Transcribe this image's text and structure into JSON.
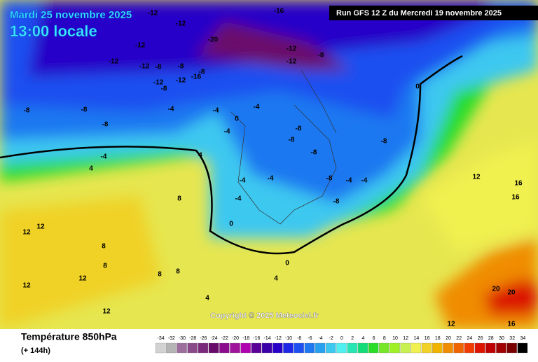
{
  "header": {
    "date": "Mardi 25 novembre 2025",
    "time": "13:00 locale",
    "run": "Run GFS 12 Z du Mercredi 19 novembre 2025"
  },
  "map": {
    "labels": [
      "-12",
      "-12",
      "-20",
      "-16",
      "-12",
      "-12",
      "-12",
      "-12",
      "-8",
      "-12",
      "-8",
      "-8",
      "-16",
      "-8",
      "-12",
      "-12",
      "-8",
      "-4",
      "-8",
      "-8",
      "-8",
      "-4",
      "-4",
      "-4",
      "-4",
      "-8",
      "-8",
      "-8",
      "-8",
      "-8",
      "0",
      "0",
      "0",
      "0",
      "-4",
      "-4",
      "-4",
      "-4",
      "-8",
      "-4",
      "4",
      "4",
      "4",
      "8",
      "8",
      "8",
      "8",
      "12",
      "12",
      "12",
      "12",
      "12",
      "12",
      "16",
      "16",
      "20",
      "20",
      "12",
      "16",
      "8",
      "4"
    ],
    "copyright": "Copyright © 2025 Meteociel.fr"
  },
  "footer": {
    "title": "Température 850hPa",
    "lead": "(+ 144h)"
  },
  "scale": {
    "values": [
      -34,
      -32,
      -30,
      -28,
      -26,
      -24,
      -22,
      -20,
      -18,
      -16,
      -14,
      -12,
      -10,
      -8,
      -6,
      -4,
      -2,
      0,
      2,
      4,
      6,
      8,
      10,
      12,
      14,
      16,
      18,
      20,
      22,
      24,
      26,
      28,
      30,
      32,
      34
    ],
    "colors": [
      "#d2d2d2",
      "#b4b4b4",
      "#9c6e9c",
      "#8a4a8a",
      "#7a2a7a",
      "#680a68",
      "#8c0a8c",
      "#a0149c",
      "#b000b0",
      "#5a0098",
      "#3c00a8",
      "#2800c8",
      "#1e28e6",
      "#1e50f0",
      "#1e78f0",
      "#28a0f0",
      "#3cc8f0",
      "#50f0f0",
      "#28e6b4",
      "#14dc78",
      "#28dc28",
      "#78e628",
      "#a0f028",
      "#c8f050",
      "#f0f050",
      "#f0d228",
      "#f0b400",
      "#f08c00",
      "#f06400",
      "#f03c00",
      "#dc1400",
      "#be0000",
      "#a00000",
      "#780000",
      "#000000"
    ]
  }
}
